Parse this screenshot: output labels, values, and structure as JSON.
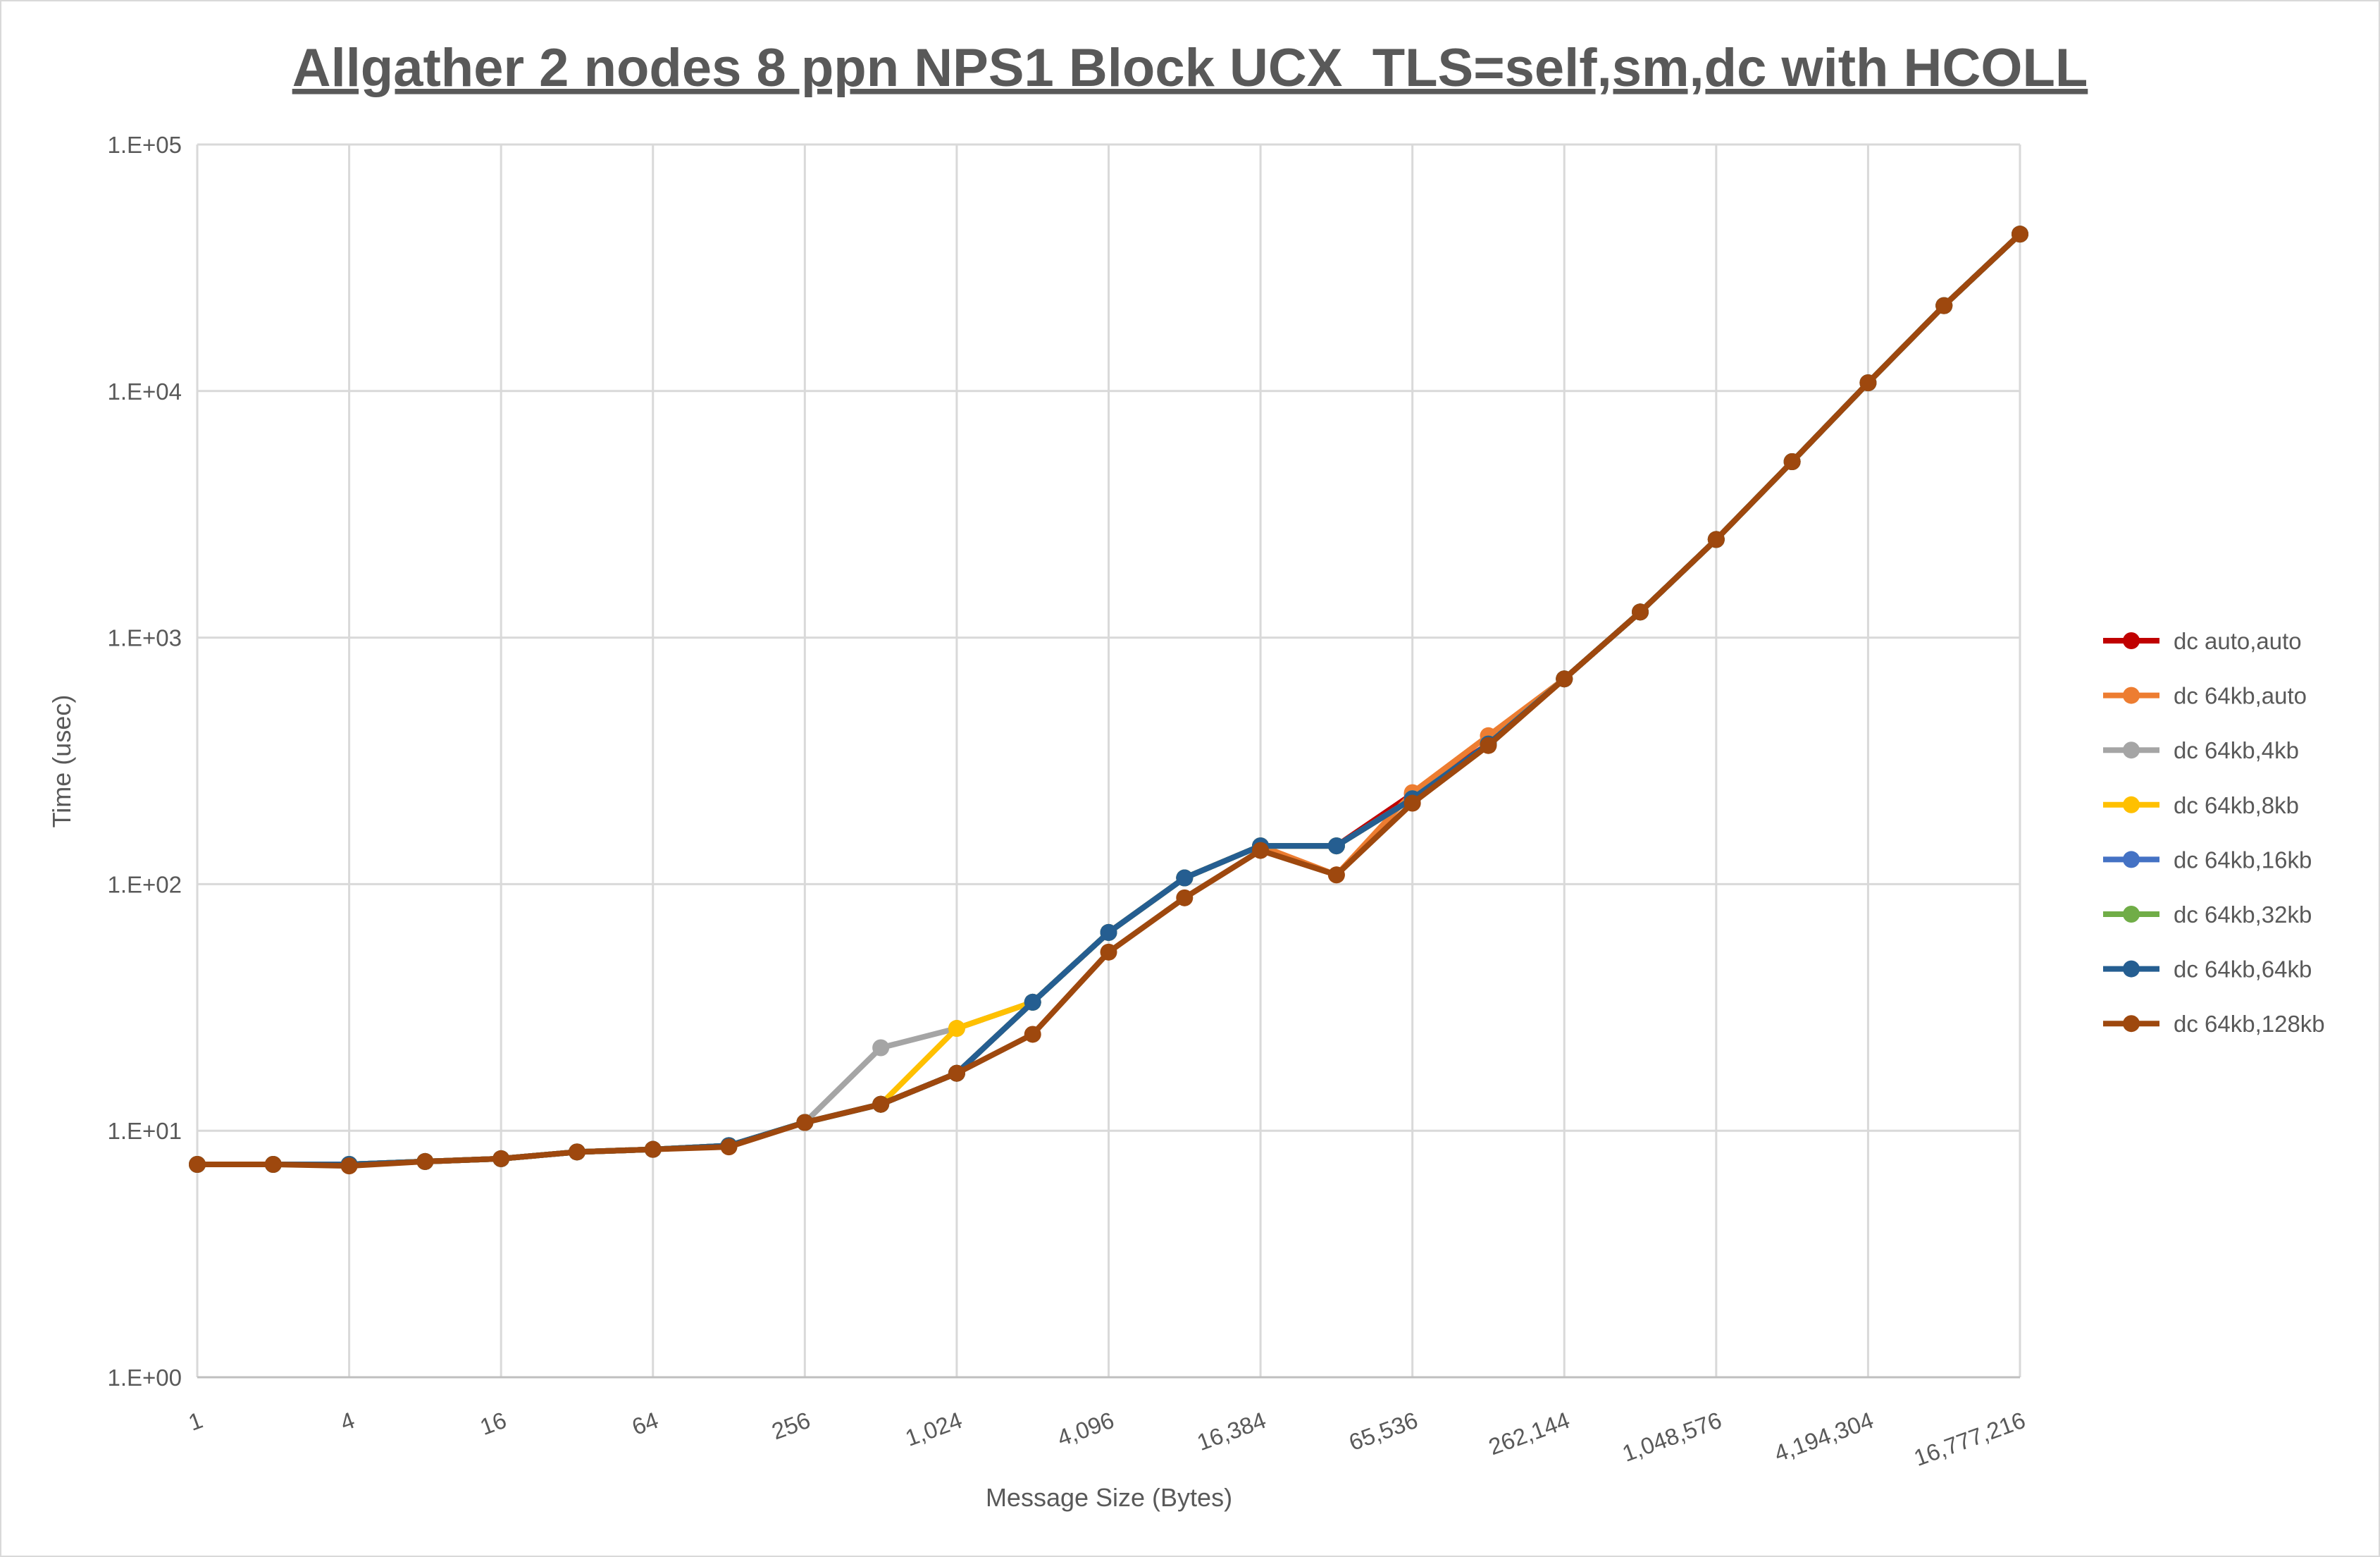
{
  "chart_data": {
    "type": "line",
    "title": "Allgather 2 nodes 8 ppn NPS1 Block UCX_TLS=self,sm,dc with HCOLL",
    "xlabel": "Message Size (Bytes)",
    "ylabel": "Time (usec)",
    "x_scale": "log2",
    "y_scale": "log10",
    "ylim": [
      1,
      100000
    ],
    "grid": true,
    "legend_position": "right",
    "x": [
      1,
      2,
      4,
      8,
      16,
      32,
      64,
      128,
      256,
      512,
      1024,
      2048,
      4096,
      8192,
      16384,
      32768,
      65536,
      131072,
      262144,
      524288,
      1048576,
      2097152,
      4194304,
      8388608,
      16777216
    ],
    "x_tick_labels": [
      "1",
      "4",
      "16",
      "64",
      "256",
      "1,024",
      "4,096",
      "16,384",
      "65,536",
      "262,144",
      "1,048,576",
      "4,194,304",
      "16,777,216"
    ],
    "y_tick_labels": [
      "1.E+00",
      "1.E+01",
      "1.E+02",
      "1.E+03",
      "1.E+04",
      "1.E+05"
    ],
    "series": [
      {
        "name": "dc auto,auto",
        "color": "#C00000",
        "values": [
          7.3,
          7.3,
          7.3,
          7.5,
          7.7,
          8.2,
          8.4,
          8.7,
          10.8,
          12.8,
          17.1,
          33.2,
          63.7,
          106,
          143,
          143,
          232,
          370,
          680,
          1270,
          2500,
          5170,
          10800,
          22200,
          43300
        ]
      },
      {
        "name": "dc 64kb,auto",
        "color": "#ED7D31",
        "values": [
          7.3,
          7.3,
          7.3,
          7.5,
          7.7,
          8.2,
          8.4,
          8.7,
          10.8,
          12.8,
          17.1,
          33.2,
          63.7,
          106,
          143,
          109,
          235,
          400,
          680,
          1270,
          2500,
          5170,
          10800,
          22200,
          43300
        ]
      },
      {
        "name": "dc 64kb,4kb",
        "color": "#A5A5A5",
        "values": [
          7.3,
          7.3,
          7.3,
          7.5,
          7.7,
          8.2,
          8.4,
          8.7,
          10.8,
          21.7,
          26,
          33.2,
          63.7,
          106,
          143,
          143,
          222,
          370,
          680,
          1270,
          2500,
          5170,
          10800,
          22200,
          43300
        ]
      },
      {
        "name": "dc 64kb,8kb",
        "color": "#FFC000",
        "values": [
          7.3,
          7.3,
          7.3,
          7.5,
          7.7,
          8.2,
          8.4,
          8.7,
          10.8,
          12.8,
          26,
          33.2,
          63.7,
          106,
          143,
          143,
          222,
          370,
          680,
          1270,
          2500,
          5170,
          10800,
          22200,
          43300
        ]
      },
      {
        "name": "dc 64kb,16kb",
        "color": "#4472C4",
        "values": [
          7.3,
          7.3,
          7.3,
          7.5,
          7.7,
          8.2,
          8.4,
          8.7,
          10.8,
          12.8,
          17.1,
          33.2,
          63.7,
          106,
          143,
          143,
          222,
          370,
          680,
          1270,
          2500,
          5170,
          10800,
          22200,
          43300
        ]
      },
      {
        "name": "dc 64kb,32kb",
        "color": "#70AD47",
        "values": [
          7.3,
          7.3,
          7.3,
          7.5,
          7.7,
          8.2,
          8.4,
          8.7,
          10.8,
          12.8,
          17.1,
          33.2,
          63.7,
          106,
          143,
          143,
          222,
          370,
          680,
          1270,
          2500,
          5170,
          10800,
          22200,
          43300
        ]
      },
      {
        "name": "dc 64kb,64kb",
        "color": "#255E91",
        "values": [
          7.3,
          7.3,
          7.3,
          7.5,
          7.7,
          8.2,
          8.4,
          8.7,
          10.8,
          12.8,
          17.1,
          33.2,
          63.7,
          106,
          143,
          143,
          222,
          370,
          680,
          1270,
          2500,
          5170,
          10800,
          22200,
          43300
        ]
      },
      {
        "name": "dc 64kb,128kb",
        "color": "#9E480E",
        "values": [
          7.3,
          7.3,
          7.2,
          7.5,
          7.7,
          8.2,
          8.4,
          8.6,
          10.8,
          12.8,
          17.1,
          24.6,
          53,
          88,
          137,
          109,
          213,
          365,
          680,
          1270,
          2500,
          5170,
          10800,
          22200,
          43300
        ]
      }
    ]
  }
}
